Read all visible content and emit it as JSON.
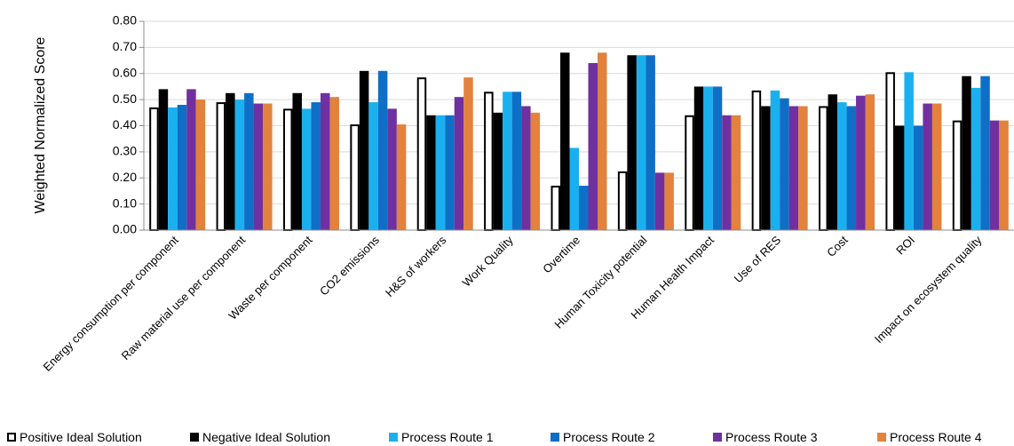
{
  "chart_data": {
    "type": "bar",
    "ylabel": "Weighted Normalized Score",
    "ylim": [
      0,
      0.8
    ],
    "yticks": [
      "0.00",
      "0.10",
      "0.20",
      "0.30",
      "0.40",
      "0.50",
      "0.60",
      "0.70",
      "0.80"
    ],
    "grid": true,
    "legend_position": "bottom",
    "categories": [
      "Energy consumption per component",
      "Raw material use per component",
      "Waste per component",
      "CO2 emissions",
      "H&S of workers",
      "Work Quality",
      "Overtime",
      "Human Toxicity potential",
      "Human Health Impact",
      "Use of RES",
      "Cost",
      "ROI",
      "Impact on ecosystem quality"
    ],
    "series": [
      {
        "name": "Positive Ideal Solution",
        "color": "#ffffff",
        "stroke": "#000000",
        "values": [
          0.47,
          0.49,
          0.465,
          0.405,
          0.585,
          0.53,
          0.17,
          0.225,
          0.44,
          0.535,
          0.475,
          0.605,
          0.42
        ]
      },
      {
        "name": "Negative Ideal Solution",
        "color": "#000000",
        "values": [
          0.54,
          0.525,
          0.525,
          0.61,
          0.44,
          0.45,
          0.68,
          0.67,
          0.55,
          0.475,
          0.52,
          0.4,
          0.59
        ]
      },
      {
        "name": "Process Route 1",
        "color": "#1ab0f0",
        "values": [
          0.47,
          0.5,
          0.465,
          0.49,
          0.44,
          0.53,
          0.315,
          0.67,
          0.55,
          0.535,
          0.49,
          0.605,
          0.545
        ]
      },
      {
        "name": "Process Route 2",
        "color": "#0f6fc6",
        "values": [
          0.48,
          0.525,
          0.49,
          0.61,
          0.44,
          0.53,
          0.17,
          0.67,
          0.55,
          0.505,
          0.475,
          0.4,
          0.59
        ]
      },
      {
        "name": "Process Route 3",
        "color": "#7030a0",
        "values": [
          0.54,
          0.485,
          0.525,
          0.465,
          0.51,
          0.475,
          0.64,
          0.22,
          0.44,
          0.475,
          0.515,
          0.485,
          0.42
        ]
      },
      {
        "name": "Process Route 4",
        "color": "#e2823d",
        "values": [
          0.5,
          0.485,
          0.51,
          0.405,
          0.585,
          0.45,
          0.68,
          0.22,
          0.44,
          0.475,
          0.52,
          0.485,
          0.42
        ]
      }
    ]
  }
}
